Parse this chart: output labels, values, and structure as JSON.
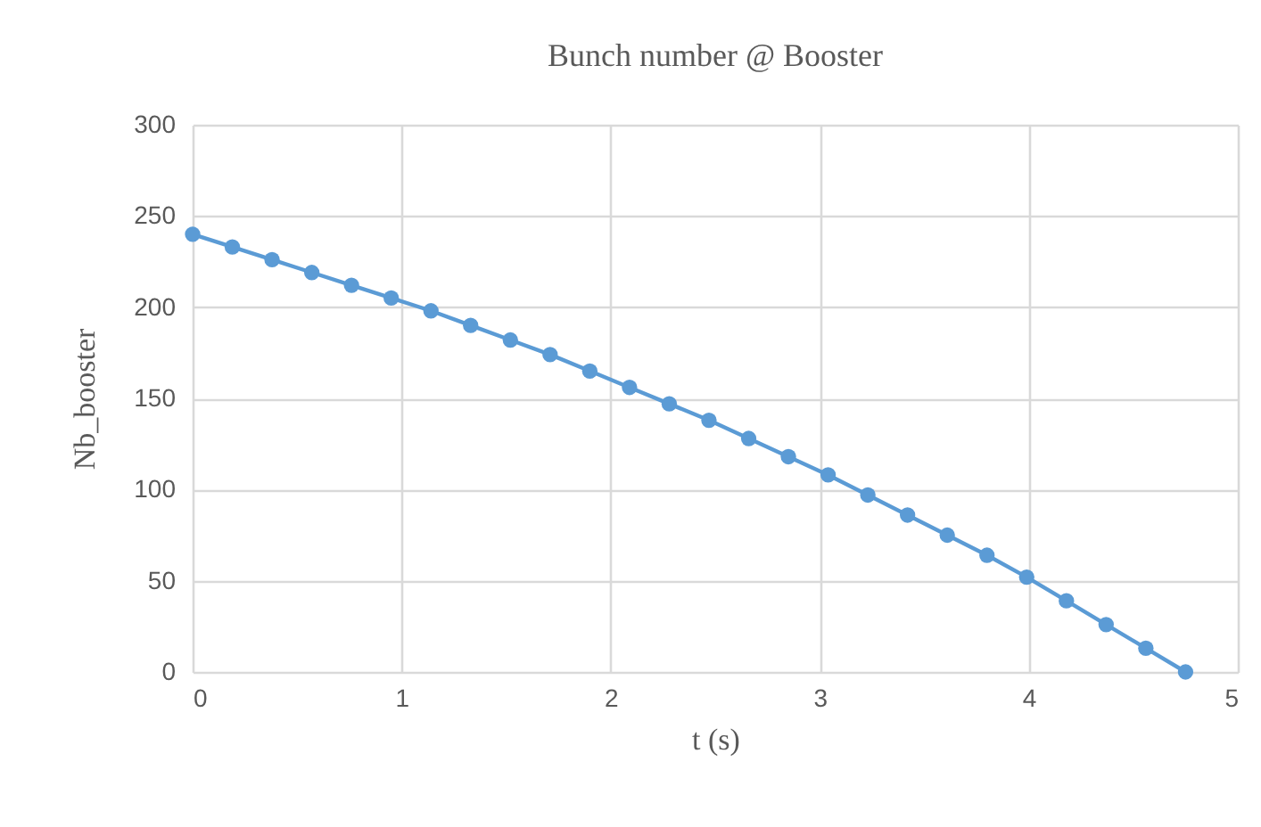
{
  "chart_data": {
    "type": "line",
    "title": "Bunch number @ Booster",
    "xlabel": "t (s)",
    "ylabel": "Nb_booster",
    "x": [
      0,
      0.19,
      0.38,
      0.57,
      0.76,
      0.95,
      1.14,
      1.33,
      1.52,
      1.71,
      1.9,
      2.09,
      2.28,
      2.47,
      2.66,
      2.85,
      3.04,
      3.23,
      3.42,
      3.61,
      3.8,
      3.99,
      4.18,
      4.37,
      4.56,
      4.75
    ],
    "series": [
      {
        "color": "#5b9bd5",
        "values": [
          240,
          233,
          226,
          219,
          212,
          205,
          198,
          190,
          182,
          174,
          165,
          156,
          147,
          138,
          128,
          118,
          108,
          97,
          86,
          75,
          64,
          52,
          39,
          26,
          13,
          0
        ]
      }
    ],
    "xlim": [
      0,
      5
    ],
    "xticks": [
      0,
      1,
      2,
      3,
      4,
      5
    ],
    "ylim": [
      0,
      300
    ],
    "yticks": [
      0,
      50,
      100,
      150,
      200,
      250,
      300
    ],
    "grid": true,
    "legend": false,
    "marker": "circle",
    "line_style": "solid"
  }
}
